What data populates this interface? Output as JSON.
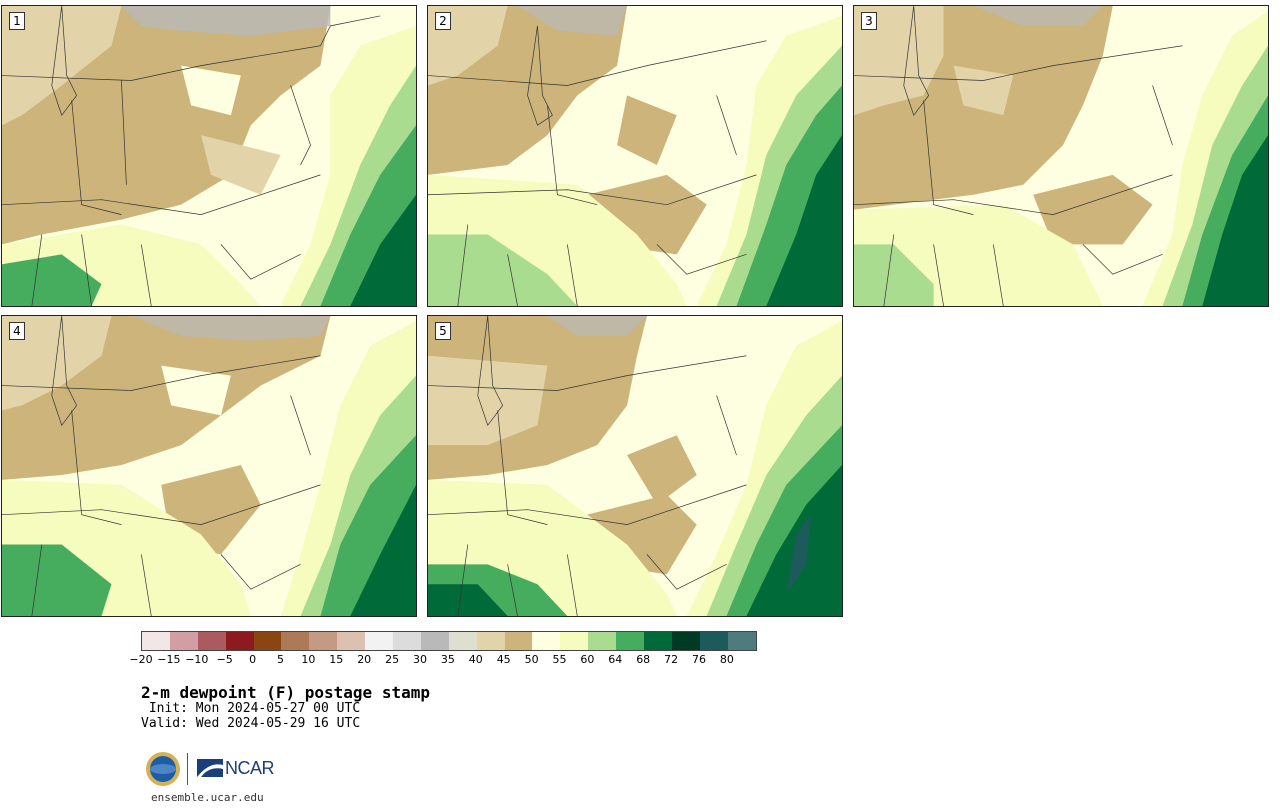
{
  "panels": [
    {
      "label": "1"
    },
    {
      "label": "2"
    },
    {
      "label": "3"
    },
    {
      "label": "4"
    },
    {
      "label": "5"
    }
  ],
  "colorbar": {
    "colors": [
      "#f3e6e6",
      "#d29ea3",
      "#ab5a5f",
      "#8c1a1f",
      "#8b4513",
      "#ad7a58",
      "#c49a82",
      "#dcc0b0",
      "#f2f2f2",
      "#dcdcdc",
      "#b9b9b9",
      "#dfdfd0",
      "#e2d4a8",
      "#ccb47a",
      "#fefee1",
      "#f6fbbe",
      "#a9dc8e",
      "#47ad5e",
      "#006a38",
      "#003a24",
      "#1d5a5c",
      "#4e7b7d"
    ],
    "tick_labels": [
      "−20",
      "−15",
      "−10",
      "−5",
      "0",
      "5",
      "10",
      "15",
      "20",
      "25",
      "30",
      "35",
      "40",
      "45",
      "50",
      "55",
      "60",
      "64",
      "68",
      "72",
      "76",
      "80"
    ]
  },
  "title": "2-m dewpoint (F) postage stamp",
  "init": " Init: Mon 2024-05-27 00 UTC",
  "valid": "Valid: Wed 2024-05-29 16 UTC",
  "logos": {
    "ncar_text": "NCAR"
  },
  "site": "ensemble.ucar.edu"
}
